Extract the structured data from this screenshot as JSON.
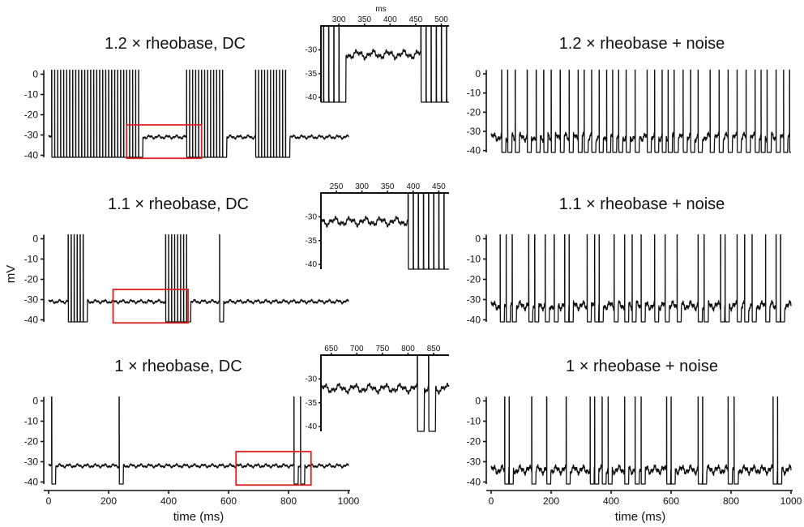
{
  "figure": {
    "y_axis_label": "mV",
    "x_axis_label": "time (ms)",
    "inset_unit_label": "ms",
    "highlight_color": "#e02020",
    "trace_color": "#111111"
  },
  "chart_data": [
    {
      "type": "line",
      "title": "1.2 × rheobase, DC",
      "xlim": [
        0,
        1000
      ],
      "ylim": [
        -41,
        3
      ],
      "yticks": [
        0,
        -10,
        -20,
        -30,
        -40
      ],
      "show_xticks": false,
      "baseline_mV": -31,
      "spike_times_ms": [
        10,
        20,
        30,
        40,
        50,
        60,
        70,
        80,
        90,
        100,
        110,
        120,
        130,
        140,
        150,
        160,
        170,
        180,
        190,
        200,
        210,
        220,
        230,
        240,
        250,
        260,
        270,
        280,
        290,
        300,
        460,
        470,
        480,
        490,
        500,
        510,
        520,
        530,
        540,
        550,
        560,
        570,
        580,
        690,
        700,
        710,
        720,
        730,
        740,
        750,
        760,
        770,
        780,
        790
      ],
      "highlight_ms": [
        260,
        510
      ],
      "inset": {
        "xlim": [
          265,
          515
        ],
        "ylim": [
          -41,
          -25
        ],
        "xticks": [
          300,
          350,
          400,
          450,
          500
        ],
        "yticks": [
          -30,
          -35,
          -40
        ],
        "show_unit": true
      }
    },
    {
      "type": "line",
      "title": "1.1 × rheobase, DC",
      "xlim": [
        0,
        1000
      ],
      "ylim": [
        -41,
        3
      ],
      "yticks": [
        0,
        -10,
        -20,
        -30,
        -40
      ],
      "show_xticks": false,
      "baseline_mV": -31,
      "spike_times_ms": [
        65,
        75,
        85,
        95,
        105,
        115,
        390,
        400,
        410,
        420,
        430,
        440,
        450,
        460,
        570
      ],
      "highlight_ms": [
        215,
        465
      ],
      "inset": {
        "xlim": [
          220,
          470
        ],
        "ylim": [
          -41,
          -25
        ],
        "xticks": [
          250,
          300,
          350,
          400,
          450
        ],
        "yticks": [
          -30,
          -35,
          -40
        ],
        "show_unit": false
      }
    },
    {
      "type": "line",
      "title": "1 × rheobase, DC",
      "xlim": [
        0,
        1000
      ],
      "ylim": [
        -41,
        3
      ],
      "yticks": [
        0,
        -10,
        -20,
        -30,
        -40
      ],
      "xticks": [
        0,
        200,
        400,
        600,
        800,
        1000
      ],
      "show_xticks": true,
      "baseline_mV": -32,
      "spike_times_ms": [
        10,
        235,
        818,
        840
      ],
      "highlight_ms": [
        625,
        875
      ],
      "inset": {
        "xlim": [
          630,
          880
        ],
        "ylim": [
          -41,
          -25
        ],
        "xticks": [
          650,
          700,
          750,
          800,
          850
        ],
        "yticks": [
          -30,
          -35,
          -40
        ],
        "show_unit": false
      }
    },
    {
      "type": "line",
      "title": "1.2 × rheobase + noise",
      "xlim": [
        0,
        1000
      ],
      "ylim": [
        -41,
        3
      ],
      "yticks": [
        0,
        -10,
        -20,
        -30,
        -40
      ],
      "show_xticks": false,
      "baseline_mV": -33,
      "spike_times_ms": [
        35,
        55,
        80,
        120,
        150,
        175,
        200,
        230,
        260,
        290,
        310,
        335,
        360,
        385,
        405,
        425,
        450,
        480,
        520,
        545,
        570,
        590,
        610,
        640,
        665,
        690,
        730,
        760,
        790,
        820,
        850,
        880,
        900,
        920,
        950,
        975,
        995
      ]
    },
    {
      "type": "line",
      "title": "1.1 × rheobase + noise",
      "xlim": [
        0,
        1000
      ],
      "ylim": [
        -41,
        3
      ],
      "yticks": [
        0,
        -10,
        -20,
        -30,
        -40
      ],
      "show_xticks": false,
      "baseline_mV": -33,
      "spike_times_ms": [
        30,
        50,
        70,
        125,
        145,
        180,
        210,
        245,
        260,
        320,
        345,
        360,
        410,
        445,
        470,
        500,
        545,
        580,
        620,
        690,
        710,
        765,
        780,
        820,
        845,
        870,
        915,
        950,
        965
      ]
    },
    {
      "type": "line",
      "title": "1 × rheobase + noise",
      "xlim": [
        0,
        1000
      ],
      "ylim": [
        -41,
        3
      ],
      "yticks": [
        0,
        -10,
        -20,
        -30,
        -40
      ],
      "xticks": [
        0,
        200,
        400,
        600,
        800,
        1000
      ],
      "show_xticks": true,
      "baseline_mV": -34,
      "spike_times_ms": [
        45,
        60,
        135,
        185,
        250,
        330,
        345,
        370,
        390,
        445,
        480,
        500,
        585,
        600,
        690,
        705,
        790,
        810,
        940,
        955
      ]
    }
  ]
}
